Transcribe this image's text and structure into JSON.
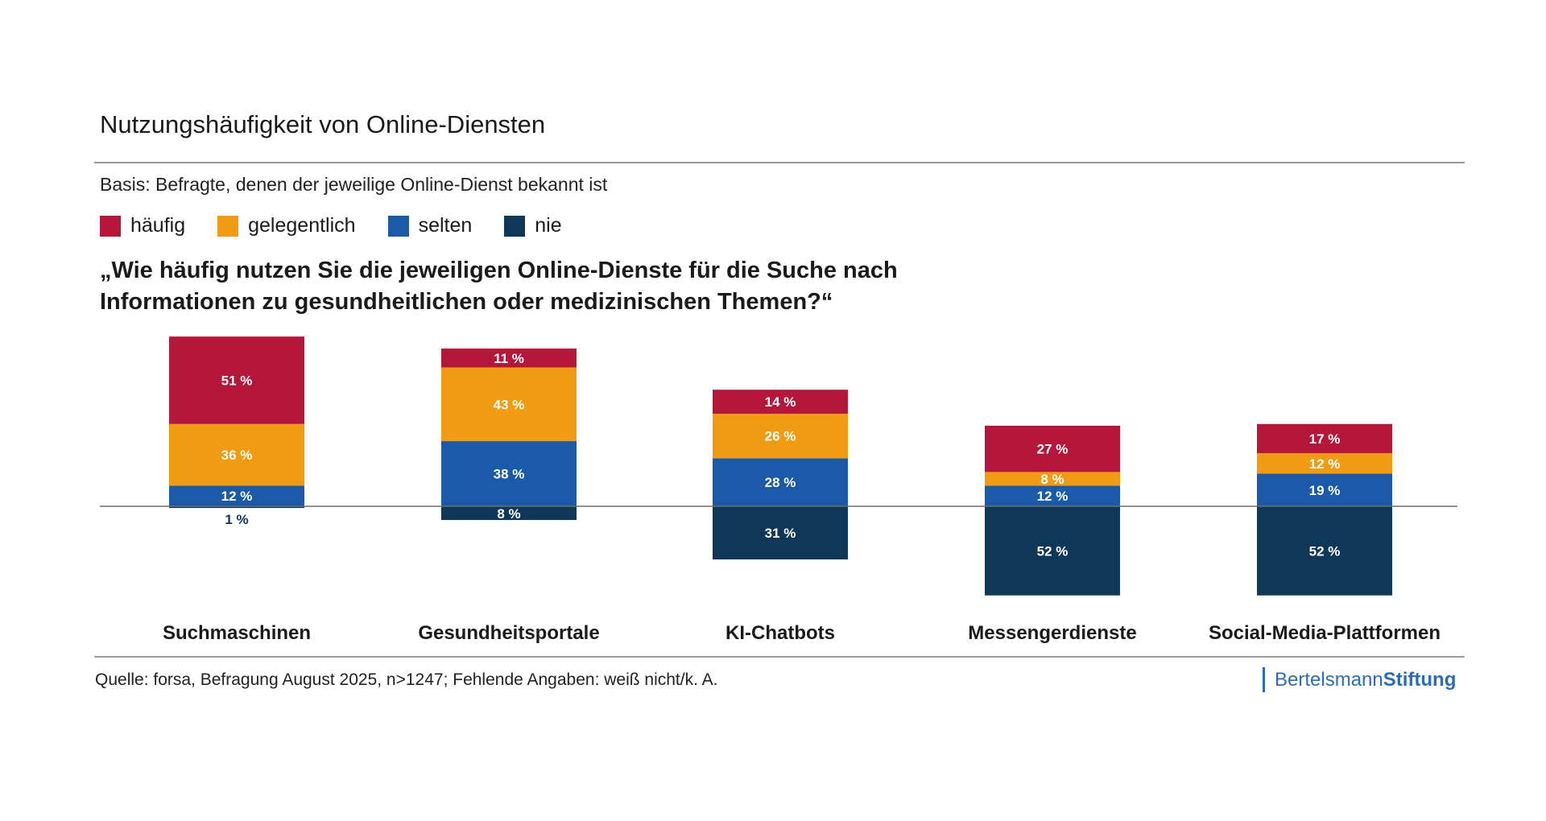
{
  "chart_data": {
    "type": "bar",
    "stacked": "diverging",
    "title": "Nutzungshäufigkeit von Online-Diensten",
    "subtitle": "Basis: Befragte, denen der jeweilige Online-Dienst bekannt ist",
    "question": [
      "„Wie häufig nutzen Sie die jeweiligen Online-Dienste für die Suche nach",
      "Informationen zu gesundheitlichen oder medizinischen Themen?“"
    ],
    "categories": [
      "Suchmaschinen",
      "Gesundheitsportale",
      "KI-Chatbots",
      "Messengerdienste",
      "Social-Media-Plattformen"
    ],
    "unit": "%",
    "legend_position": "top-left",
    "baseline": 0,
    "series": [
      {
        "name": "häufig",
        "color": "#b5173b",
        "direction": "up",
        "values": [
          51,
          11,
          14,
          27,
          17
        ]
      },
      {
        "name": "gelegentlich",
        "color": "#f09b12",
        "direction": "up",
        "values": [
          36,
          43,
          26,
          8,
          12
        ]
      },
      {
        "name": "selten",
        "color": "#1b5aa8",
        "direction": "up",
        "values": [
          12,
          38,
          28,
          12,
          19
        ]
      },
      {
        "name": "nie",
        "color": "#0f3758",
        "direction": "down",
        "values": [
          1,
          8,
          31,
          52,
          52
        ]
      }
    ]
  },
  "footer": {
    "source": "Quelle: forsa, Befragung August 2025, n>1247; Fehlende Angaben: weiß nicht/k. A.",
    "brand_part1": "Bertelsmann",
    "brand_part2": "Stiftung"
  }
}
